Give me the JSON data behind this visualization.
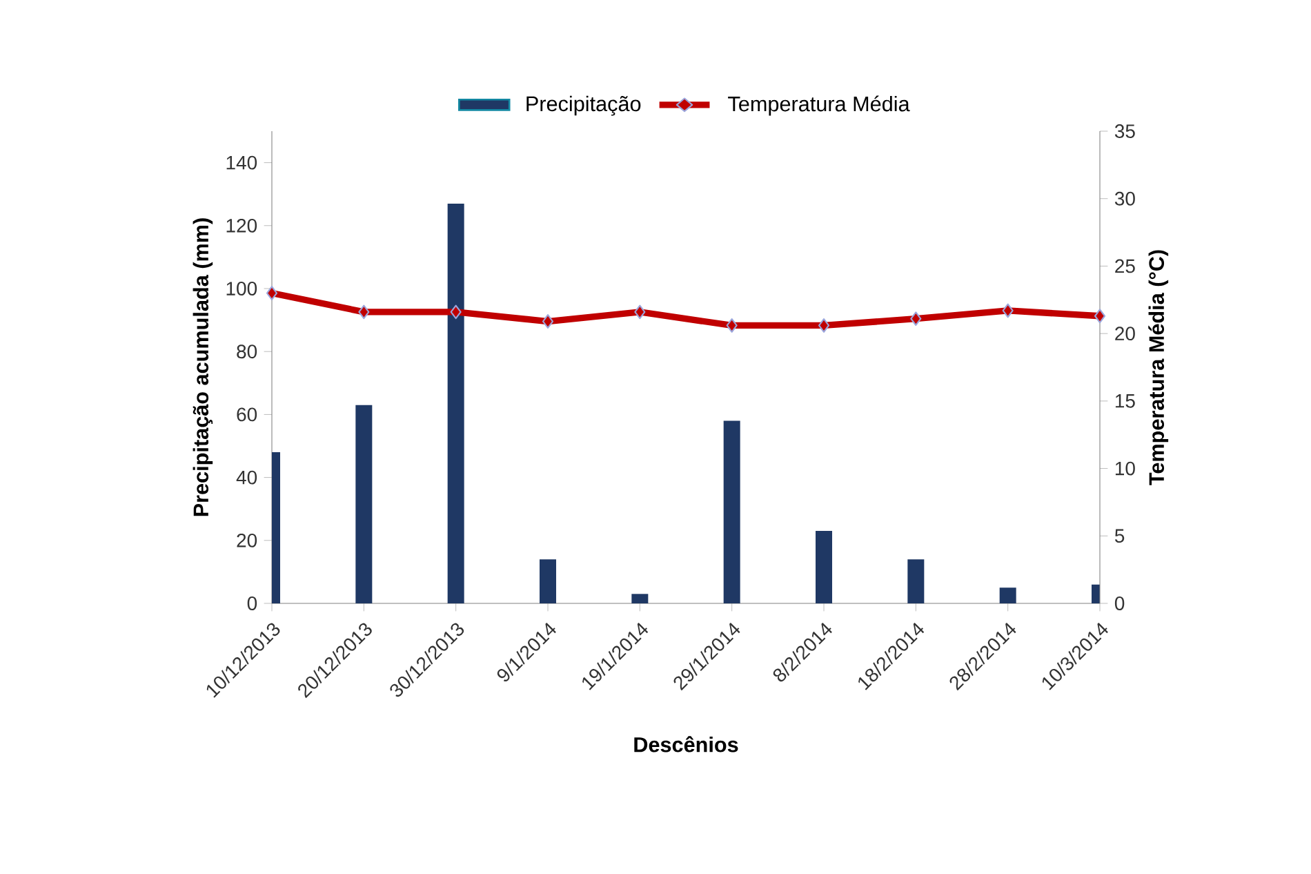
{
  "chart_data": {
    "type": "bar",
    "categories": [
      "10/12/2013",
      "20/12/2013",
      "30/12/2013",
      "9/1/2014",
      "19/1/2014",
      "29/1/2014",
      "8/2/2014",
      "18/2/2014",
      "28/2/2014",
      "10/3/2014"
    ],
    "series": [
      {
        "name": "Precipitação",
        "color": "#1f3864",
        "values": [
          48,
          63,
          127,
          14,
          3,
          58,
          23,
          14,
          5,
          6
        ]
      },
      {
        "name": "Temperatura Média",
        "type": "line",
        "axis": "y2",
        "marker": "diamond",
        "color": "#c00000",
        "values": [
          23,
          21.6,
          21.6,
          20.9,
          21.6,
          20.6,
          20.6,
          21.1,
          21.7,
          21.3
        ]
      }
    ],
    "xlabel": "Descênios",
    "ylabel": "Precipitação acumulada (mm)",
    "y2label": "Temperatura Média (°C)",
    "ylim": [
      0,
      150
    ],
    "yticks": [
      0,
      20,
      40,
      60,
      80,
      100,
      120,
      140
    ],
    "y2lim": [
      0,
      35
    ],
    "y2ticks": [
      0,
      5,
      10,
      15,
      20,
      25,
      30,
      35
    ],
    "legend": "top"
  }
}
